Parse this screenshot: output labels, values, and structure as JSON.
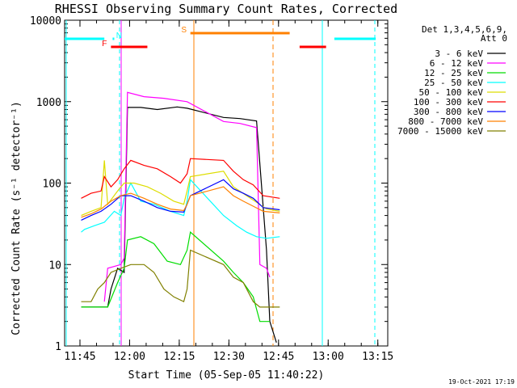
{
  "chart_data": {
    "type": "line",
    "title": "RHESSI Observing Summary Count Rates, Corrected",
    "xlabel": "Start Time (05-Sep-05 11:40:22)",
    "ylabel": "Corrected Count Rate (s⁻¹ detector⁻¹)",
    "y_scale": "log",
    "ylim": [
      1,
      10000
    ],
    "xlim": [
      "11:40:22",
      "13:18:00"
    ],
    "x_ticks": [
      "11:45",
      "12:00",
      "12:15",
      "12:30",
      "12:45",
      "13:00",
      "13:15"
    ],
    "y_ticks": [
      "1",
      "10",
      "100",
      "1000",
      "10000"
    ],
    "timestamp": "19-Oct-2021 17:19",
    "legend_header": [
      "Det 1,3,4,5,6,9,",
      "Att 0"
    ],
    "series": [
      {
        "name": "3 - 6 keV",
        "color": "#000000",
        "points": [
          [
            5,
            3
          ],
          [
            13,
            3
          ],
          [
            14,
            5
          ],
          [
            16,
            9
          ],
          [
            18,
            8
          ],
          [
            19,
            850
          ],
          [
            23,
            850
          ],
          [
            28,
            800
          ],
          [
            34,
            860
          ],
          [
            37,
            830
          ],
          [
            48,
            640
          ],
          [
            53,
            620
          ],
          [
            58,
            580
          ],
          [
            61,
            15
          ],
          [
            62,
            2
          ],
          [
            64,
            1.1
          ]
        ]
      },
      {
        "name": "6 - 12 keV",
        "color": "#ff00ff",
        "points": [
          [
            12,
            3.5
          ],
          [
            13,
            9
          ],
          [
            17,
            10
          ],
          [
            18,
            12
          ],
          [
            19,
            1300
          ],
          [
            24,
            1150
          ],
          [
            30,
            1100
          ],
          [
            37,
            1000
          ],
          [
            48,
            570
          ],
          [
            53,
            540
          ],
          [
            58,
            480
          ],
          [
            59,
            10
          ],
          [
            61,
            9
          ],
          [
            62,
            7
          ]
        ]
      },
      {
        "name": "12 - 25 keV",
        "color": "#00dd00",
        "points": [
          [
            5,
            3
          ],
          [
            13,
            3
          ],
          [
            16,
            6
          ],
          [
            18,
            9
          ],
          [
            19,
            20
          ],
          [
            23,
            22
          ],
          [
            27,
            18
          ],
          [
            31,
            11
          ],
          [
            35,
            10
          ],
          [
            37,
            15
          ],
          [
            38,
            25
          ],
          [
            48,
            11
          ],
          [
            51,
            8
          ],
          [
            54,
            6
          ],
          [
            57,
            4
          ],
          [
            59,
            2
          ],
          [
            62,
            2
          ]
        ]
      },
      {
        "name": "25 - 50 keV",
        "color": "#00ffff",
        "points": [
          [
            5,
            25
          ],
          [
            6,
            27
          ],
          [
            9,
            30
          ],
          [
            12,
            33
          ],
          [
            15,
            45
          ],
          [
            17,
            40
          ],
          [
            18,
            65
          ],
          [
            20,
            100
          ],
          [
            23,
            60
          ],
          [
            27,
            55
          ],
          [
            32,
            45
          ],
          [
            36,
            40
          ],
          [
            37,
            60
          ],
          [
            38,
            110
          ],
          [
            48,
            40
          ],
          [
            52,
            30
          ],
          [
            55,
            25
          ],
          [
            58,
            22
          ],
          [
            61,
            21
          ],
          [
            65,
            22
          ]
        ]
      },
      {
        "name": "50 - 100 keV",
        "color": "#dddd00",
        "points": [
          [
            5,
            40
          ],
          [
            8,
            45
          ],
          [
            11,
            50
          ],
          [
            12,
            190
          ],
          [
            13,
            55
          ],
          [
            16,
            80
          ],
          [
            18,
            100
          ],
          [
            21,
            100
          ],
          [
            25,
            90
          ],
          [
            29,
            75
          ],
          [
            33,
            60
          ],
          [
            36,
            55
          ],
          [
            37,
            80
          ],
          [
            38,
            120
          ],
          [
            48,
            140
          ],
          [
            51,
            90
          ],
          [
            55,
            70
          ],
          [
            58,
            58
          ],
          [
            61,
            48
          ],
          [
            65,
            45
          ]
        ]
      },
      {
        "name": "100 - 300 keV",
        "color": "#ff0000",
        "points": [
          [
            5,
            65
          ],
          [
            8,
            75
          ],
          [
            11,
            80
          ],
          [
            12,
            120
          ],
          [
            14,
            90
          ],
          [
            16,
            110
          ],
          [
            18,
            150
          ],
          [
            20,
            190
          ],
          [
            24,
            165
          ],
          [
            28,
            150
          ],
          [
            32,
            120
          ],
          [
            35,
            100
          ],
          [
            37,
            130
          ],
          [
            38,
            200
          ],
          [
            48,
            190
          ],
          [
            51,
            140
          ],
          [
            54,
            110
          ],
          [
            57,
            95
          ],
          [
            60,
            70
          ],
          [
            65,
            65
          ]
        ]
      },
      {
        "name": "300 - 800 keV",
        "color": "#0000ff",
        "points": [
          [
            5,
            35
          ],
          [
            8,
            40
          ],
          [
            11,
            45
          ],
          [
            14,
            55
          ],
          [
            17,
            70
          ],
          [
            20,
            70
          ],
          [
            24,
            60
          ],
          [
            28,
            50
          ],
          [
            32,
            45
          ],
          [
            36,
            44
          ],
          [
            37,
            55
          ],
          [
            38,
            70
          ],
          [
            48,
            110
          ],
          [
            51,
            85
          ],
          [
            54,
            75
          ],
          [
            57,
            65
          ],
          [
            60,
            50
          ],
          [
            65,
            47
          ]
        ]
      },
      {
        "name": "800 - 7000 keV",
        "color": "#ff8000",
        "points": [
          [
            5,
            38
          ],
          [
            8,
            42
          ],
          [
            11,
            48
          ],
          [
            14,
            60
          ],
          [
            17,
            70
          ],
          [
            20,
            75
          ],
          [
            24,
            65
          ],
          [
            28,
            55
          ],
          [
            32,
            48
          ],
          [
            36,
            46
          ],
          [
            37,
            55
          ],
          [
            38,
            70
          ],
          [
            48,
            90
          ],
          [
            51,
            70
          ],
          [
            54,
            60
          ],
          [
            57,
            52
          ],
          [
            60,
            45
          ],
          [
            65,
            43
          ]
        ]
      },
      {
        "name": "7000 - 15000 keV",
        "color": "#808000",
        "points": [
          [
            5,
            3.5
          ],
          [
            8,
            3.5
          ],
          [
            10,
            5
          ],
          [
            12,
            6
          ],
          [
            14,
            8
          ],
          [
            17,
            9
          ],
          [
            20,
            10
          ],
          [
            24,
            10
          ],
          [
            27,
            8
          ],
          [
            30,
            5
          ],
          [
            33,
            4
          ],
          [
            36,
            3.5
          ],
          [
            37,
            5
          ],
          [
            38,
            15
          ],
          [
            48,
            10
          ],
          [
            51,
            7
          ],
          [
            54,
            6
          ],
          [
            57,
            3.5
          ],
          [
            59,
            3
          ],
          [
            62,
            3
          ],
          [
            65,
            3
          ]
        ]
      }
    ],
    "flag_bars": [
      {
        "label": "",
        "color": "#00ffff",
        "x": [
          -1,
          12
        ]
      },
      {
        "label": "N",
        "color": "#00ffff",
        "x": [
          14.5,
          15
        ]
      },
      {
        "label": "F",
        "color": "#ff0000",
        "x": [
          14,
          25
        ]
      },
      {
        "label": "S",
        "color": "#ff8000",
        "x": [
          38,
          68
        ]
      },
      {
        "label": "",
        "color": "#ff0000",
        "x": [
          71,
          79
        ]
      },
      {
        "label": "",
        "color": "#00ffff",
        "x": [
          81.5,
          94
        ]
      }
    ]
  }
}
